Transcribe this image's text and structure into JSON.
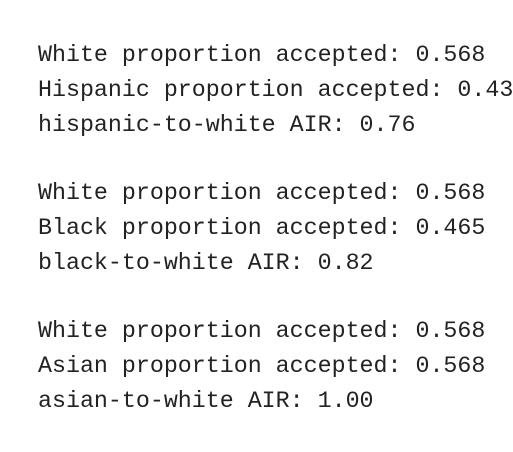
{
  "output": {
    "blocks": [
      [
        "White proportion accepted: 0.568",
        "Hispanic proportion accepted: 0.43",
        "hispanic-to-white AIR: 0.76"
      ],
      [
        "White proportion accepted: 0.568",
        "Black proportion accepted: 0.465",
        "black-to-white AIR: 0.82"
      ],
      [
        "White proportion accepted: 0.568",
        "Asian proportion accepted: 0.568",
        "asian-to-white AIR: 1.00"
      ]
    ]
  }
}
